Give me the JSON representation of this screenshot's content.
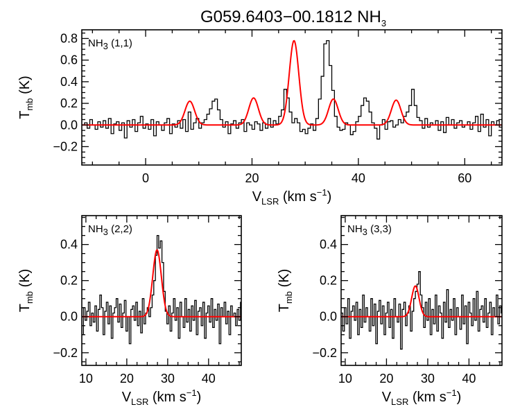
{
  "figure": {
    "title": "G059.6403−00.1812 NH",
    "title_sub": "3"
  },
  "chart_data": [
    {
      "type": "line",
      "panel": "top",
      "label": "NH",
      "label_sub": "3",
      "label_suffix": " (1,1)",
      "xlabel": "V",
      "xlabel_sub": "LSR",
      "xlabel_suffix": " (km s",
      "xlabel_sup": "−1",
      "xlabel_end": ")",
      "ylabel": "T",
      "ylabel_sub": "mb",
      "ylabel_suffix": " (K)",
      "xlim": [
        -12,
        67
      ],
      "ylim": [
        -0.37,
        0.88
      ],
      "xticks": [
        0,
        20,
        40,
        60
      ],
      "xtick_labels": [
        "0",
        "20",
        "40",
        "60"
      ],
      "yticks": [
        -0.2,
        0.0,
        0.2,
        0.4,
        0.6,
        0.8
      ],
      "ytick_labels": [
        "−0.2",
        "0.0",
        "0.2",
        "0.4",
        "0.6",
        "0.8"
      ],
      "series": [
        {
          "color": "#000000",
          "style": "histogram",
          "x_start": -12,
          "x_step": 0.5,
          "values": [
            0.0,
            0.02,
            -0.03,
            0.05,
            0.0,
            -0.04,
            0.03,
            -0.02,
            0.04,
            -0.03,
            0.06,
            -0.08,
            0.01,
            0.03,
            -0.05,
            0.02,
            -0.12,
            0.04,
            -0.02,
            0.05,
            -0.06,
            0.02,
            0.08,
            -0.03,
            0.01,
            -0.04,
            0.05,
            -0.1,
            0.03,
            0.0,
            -0.05,
            0.02,
            0.06,
            -0.08,
            0.01,
            -0.02,
            0.04,
            -0.03,
            0.05,
            -0.06,
            0.12,
            -0.04,
            0.02,
            0.06,
            -0.03,
            0.02,
            0.05,
            0.1,
            0.15,
            0.22,
            0.24,
            0.14,
            0.05,
            -0.02,
            0.03,
            -0.08,
            0.01,
            0.04,
            -0.03,
            0.02,
            0.05,
            -0.06,
            0.02,
            0.0,
            -0.04,
            0.03,
            0.01,
            -0.05,
            0.02,
            -0.03,
            0.06,
            -0.02,
            0.04,
            0.01,
            0.08,
            0.14,
            0.33,
            0.25,
            0.12,
            0.02,
            0.06,
            0.02,
            -0.06,
            -0.04,
            -0.08,
            -0.03,
            0.01,
            -0.05,
            0.06,
            0.24,
            0.45,
            0.75,
            0.78,
            0.55,
            0.32,
            0.08,
            -0.02,
            -0.05,
            -0.04,
            0.02,
            0.0,
            -0.09,
            -0.06,
            0.03,
            0.08,
            0.18,
            0.25,
            0.22,
            0.12,
            0.02,
            -0.03,
            -0.13,
            0.0,
            0.05,
            -0.04,
            0.03,
            0.04,
            -0.02,
            0.0,
            0.05,
            0.02,
            0.08,
            0.12,
            0.18,
            0.33,
            0.18,
            0.07,
            0.04,
            -0.03,
            0.06,
            -0.02,
            0.02,
            0.0,
            0.04,
            -0.05,
            0.03,
            -0.07,
            0.07,
            0.0,
            0.05,
            -0.03,
            0.02,
            0.04,
            -0.02,
            0.0,
            0.03,
            -0.04,
            0.02,
            0.08,
            -0.06,
            0.1,
            -0.02,
            0.05,
            -0.1,
            0.03,
            0.0,
            0.04,
            -0.02
          ]
        },
        {
          "color": "#ff0000",
          "style": "model",
          "components": [
            {
              "center": 8.3,
              "amp": 0.22,
              "sigma": 0.9
            },
            {
              "center": 20.3,
              "amp": 0.25,
              "sigma": 0.9
            },
            {
              "center": 27.9,
              "amp": 0.78,
              "sigma": 0.9
            },
            {
              "center": 35.3,
              "amp": 0.24,
              "sigma": 0.9
            },
            {
              "center": 47.1,
              "amp": 0.23,
              "sigma": 0.9
            }
          ]
        }
      ]
    },
    {
      "type": "line",
      "panel": "bottom-left",
      "label": "NH",
      "label_sub": "3",
      "label_suffix": " (2,2)",
      "xlabel": "V",
      "xlabel_sub": "LSR",
      "xlabel_suffix": " (km s",
      "xlabel_sup": "−1",
      "xlabel_end": ")",
      "ylabel": "T",
      "ylabel_sub": "mb",
      "ylabel_suffix": " (K)",
      "xlim": [
        9,
        48
      ],
      "ylim": [
        -0.27,
        0.56
      ],
      "xticks": [
        10,
        20,
        30,
        40
      ],
      "xtick_labels": [
        "10",
        "20",
        "30",
        "40"
      ],
      "yticks": [
        -0.2,
        0.0,
        0.2,
        0.4
      ],
      "ytick_labels": [
        "−0.2",
        "0.0",
        "0.2",
        "0.4"
      ],
      "series": [
        {
          "color": "#000000",
          "style": "histogram",
          "x_start": 9,
          "x_step": 0.4,
          "values": [
            -0.1,
            0.05,
            -0.02,
            0.03,
            0.08,
            -0.05,
            0.02,
            -0.03,
            0.06,
            -0.08,
            0.04,
            0.12,
            0.05,
            -0.1,
            0.03,
            0.08,
            -0.04,
            0.06,
            -0.12,
            0.02,
            0.05,
            0.1,
            -0.03,
            0.07,
            -0.06,
            0.02,
            0.09,
            -0.08,
            0.0,
            -0.15,
            0.04,
            0.06,
            -0.02,
            0.08,
            -0.05,
            0.03,
            -0.09,
            0.1,
            -0.04,
            0.02,
            0.05,
            0.0,
            0.05,
            0.12,
            0.2,
            0.34,
            0.45,
            0.38,
            0.42,
            0.3,
            0.14,
            0.03,
            -0.04,
            0.06,
            -0.08,
            0.02,
            0.1,
            -0.02,
            0.05,
            -0.12,
            0.08,
            0.0,
            -0.06,
            0.1,
            -0.03,
            0.04,
            -0.08,
            0.06,
            -0.02,
            0.09,
            -0.1,
            0.03,
            0.05,
            -0.05,
            0.08,
            -0.12,
            0.02,
            0.06,
            -0.03,
            0.1,
            -0.06,
            0.04,
            -0.02,
            0.07,
            -0.15,
            0.05,
            0.0,
            0.08,
            -0.04,
            0.03,
            -0.1,
            0.06,
            0.0,
            0.02,
            -0.05,
            0.04,
            -0.02,
            0.08
          ]
        },
        {
          "color": "#ff0000",
          "style": "model",
          "components": [
            {
              "center": 27.4,
              "amp": 0.37,
              "sigma": 1.05
            }
          ]
        }
      ]
    },
    {
      "type": "line",
      "panel": "bottom-right",
      "label": "NH",
      "label_sub": "3",
      "label_suffix": " (3,3)",
      "xlabel": "V",
      "xlabel_sub": "LSR",
      "xlabel_suffix": " (km s",
      "xlabel_sup": "−1",
      "xlabel_end": ")",
      "ylabel": "T",
      "ylabel_sub": "mb",
      "ylabel_suffix": " (K)",
      "xlim": [
        9,
        48
      ],
      "ylim": [
        -0.27,
        0.56
      ],
      "xticks": [
        10,
        20,
        30,
        40
      ],
      "xtick_labels": [
        "10",
        "20",
        "30",
        "40"
      ],
      "yticks": [
        -0.2,
        0.0,
        0.2,
        0.4
      ],
      "ytick_labels": [
        "−0.2",
        "0.0",
        "0.2",
        "0.4"
      ],
      "series": [
        {
          "color": "#000000",
          "style": "histogram",
          "x_start": 9,
          "x_step": 0.4,
          "values": [
            0.02,
            -0.08,
            0.05,
            -0.04,
            0.1,
            -0.12,
            0.03,
            0.06,
            -0.02,
            0.08,
            -0.1,
            0.04,
            -0.06,
            0.12,
            -0.03,
            0.05,
            0.0,
            -0.08,
            0.1,
            -0.05,
            0.07,
            -0.15,
            0.03,
            0.09,
            -0.04,
            0.06,
            -0.1,
            0.02,
            0.08,
            -0.06,
            0.04,
            -0.12,
            0.1,
            0.0,
            -0.03,
            0.07,
            -0.18,
            0.04,
            0.08,
            -0.05,
            0.02,
            0.06,
            -0.08,
            0.03,
            0.1,
            0.14,
            0.18,
            0.25,
            0.12,
            0.05,
            -0.06,
            0.08,
            -0.02,
            0.1,
            -0.1,
            0.04,
            -0.04,
            0.12,
            -0.08,
            0.06,
            0.02,
            -0.12,
            0.08,
            -0.03,
            0.15,
            -0.06,
            0.04,
            -0.02,
            0.1,
            -0.1,
            0.05,
            0.0,
            -0.07,
            0.12,
            -0.04,
            0.06,
            -0.15,
            0.08,
            0.02,
            -0.05,
            0.1,
            -0.02,
            0.14,
            -0.08,
            0.04,
            0.06,
            -0.03,
            0.1,
            -0.06,
            0.02,
            0.08,
            -0.1,
            0.05,
            0.0,
            0.12,
            -0.04,
            0.06,
            0.02
          ]
        },
        {
          "color": "#ff0000",
          "style": "model",
          "components": [
            {
              "center": 27.0,
              "amp": 0.17,
              "sigma": 0.9
            }
          ]
        }
      ]
    }
  ]
}
